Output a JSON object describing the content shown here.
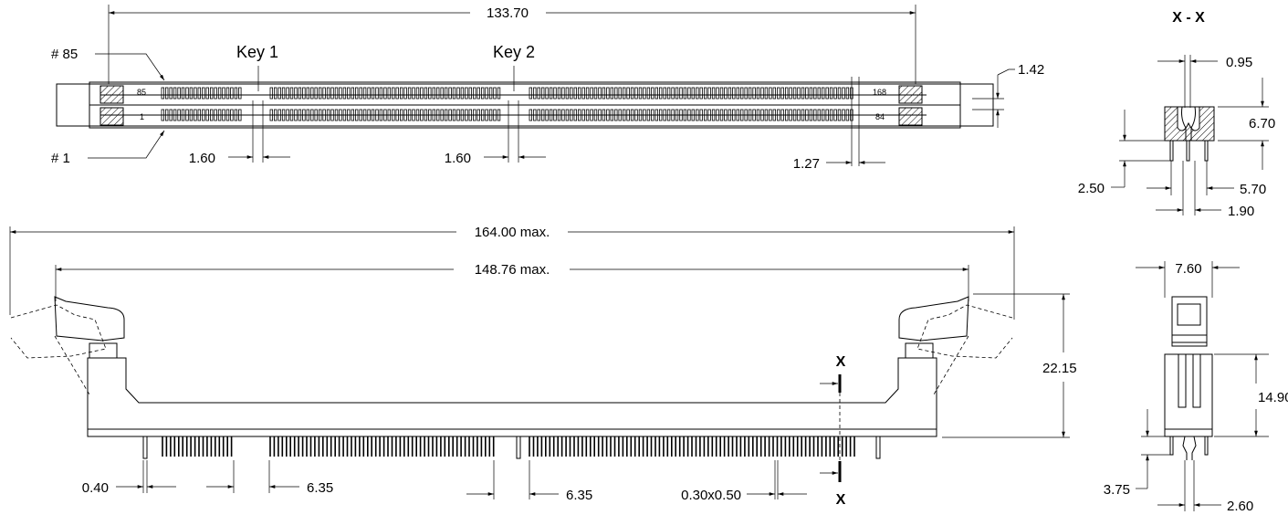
{
  "top_view": {
    "overall_length": "133.70",
    "pin_label_85": "# 85",
    "pin_label_1": "# 1",
    "key1_label": "Key 1",
    "key2_label": "Key 2",
    "key1_width": "1.60",
    "key2_width": "1.60",
    "pitch": "1.27",
    "height": "1.42",
    "slot_label_85": "85",
    "slot_label_1": "1",
    "slot_label_168": "168",
    "slot_label_84": "84"
  },
  "front_view": {
    "max_length": "164.00 max.",
    "body_length": "148.76 max.",
    "height": "22.15",
    "pin_width": "0.40",
    "segment_left": "6.35",
    "segment_right": "6.35",
    "pin_section": "0.30x0.50",
    "section_marker_top": "X",
    "section_marker_bottom": "X"
  },
  "section_view": {
    "title": "X - X",
    "dim_095": "0.95",
    "dim_670": "6.70",
    "dim_250": "2.50",
    "dim_570": "5.70",
    "dim_190": "1.90"
  },
  "side_view": {
    "width": "7.60",
    "height": "14.90",
    "pin_length": "3.75",
    "pin_spacing": "2.60"
  }
}
